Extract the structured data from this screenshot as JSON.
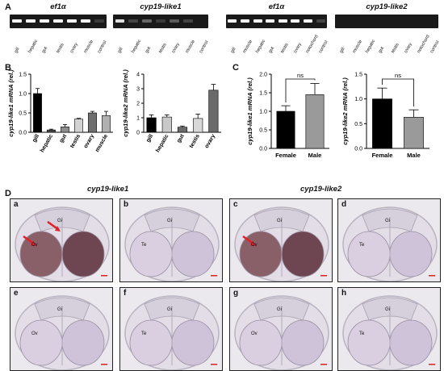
{
  "panels": {
    "A": "A",
    "B": "B",
    "C": "C",
    "D": "D"
  },
  "gels": [
    {
      "title": "ef1α",
      "lanes": [
        "gill",
        "hepatic",
        "gut",
        "testis",
        "ovary",
        "muscle",
        "control"
      ],
      "bands": [
        1,
        1,
        1,
        1,
        1,
        1,
        0.15
      ]
    },
    {
      "title": "cyp19-like1",
      "lanes": [
        "gill",
        "hepatic",
        "gut",
        "testis",
        "ovary",
        "muscle",
        "control"
      ],
      "bands": [
        0.9,
        0.2,
        0.35,
        0.15,
        0.3,
        0.2,
        0
      ]
    },
    {
      "title": "ef1α",
      "lanes": [
        "gill",
        "muscle",
        "hepatic",
        "gut",
        "testis",
        "ovary",
        "notochord",
        "control"
      ],
      "bands": [
        1,
        1,
        1,
        1,
        1,
        1,
        1,
        0.2
      ]
    },
    {
      "title": "cyp19-like2",
      "lanes": [
        "gill",
        "muscle",
        "hepatic",
        "gut",
        "testis",
        "ovary",
        "notochord",
        "control"
      ],
      "bands": [
        0,
        0,
        0,
        0,
        0,
        0,
        0,
        0
      ]
    }
  ],
  "chart_data": [
    {
      "type": "bar",
      "ylabel": "cyp19-like1 mRNA (rel.)",
      "ylim": [
        0,
        1.5
      ],
      "yticks": [
        "0.0",
        "0.5",
        "1.0",
        "1.5"
      ],
      "categories": [
        "gill",
        "hepatic",
        "gut",
        "testis",
        "ovary",
        "muscle"
      ],
      "values": [
        1.0,
        0.06,
        0.14,
        0.34,
        0.5,
        0.43
      ],
      "errors": [
        0.13,
        0.02,
        0.06,
        0.02,
        0.04,
        0.11
      ],
      "colors": [
        "#000000",
        "#4a4a4a",
        "#8e8e8e",
        "#d2d2d2",
        "#6f6f6f",
        "#b0b0b0"
      ]
    },
    {
      "type": "bar",
      "ylabel": "cyp19-like2 mRNA (rel.)",
      "ylim": [
        0,
        4
      ],
      "yticks": [
        "0",
        "1",
        "2",
        "3",
        "4"
      ],
      "categories": [
        "gill",
        "hepatic",
        "gut",
        "testis",
        "ovary"
      ],
      "values": [
        1.0,
        1.05,
        0.35,
        0.95,
        2.9
      ],
      "errors": [
        0.2,
        0.15,
        0.08,
        0.3,
        0.4
      ],
      "colors": [
        "#000000",
        "#c8c8c8",
        "#6a6a6a",
        "#d8d8d8",
        "#6a6a6a"
      ]
    },
    {
      "type": "bar",
      "ylabel": "cyp19-like1 mRNA (rel.)",
      "ylim": [
        0,
        2.0
      ],
      "yticks": [
        "0.0",
        "0.5",
        "1.0",
        "1.5",
        "2.0"
      ],
      "categories": [
        "Female",
        "Male"
      ],
      "values": [
        1.0,
        1.45
      ],
      "errors": [
        0.15,
        0.3
      ],
      "colors": [
        "#000000",
        "#9a9a9a"
      ],
      "annotation": "ns"
    },
    {
      "type": "bar",
      "ylabel": "cyp19-like2 mRNA (rel.)",
      "ylim": [
        0,
        1.5
      ],
      "yticks": [
        "0.0",
        "0.5",
        "1.0",
        "1.5"
      ],
      "categories": [
        "Female",
        "Male"
      ],
      "values": [
        1.0,
        0.63
      ],
      "errors": [
        0.22,
        0.15
      ],
      "colors": [
        "#000000",
        "#9a9a9a"
      ],
      "annotation": "ns"
    }
  ],
  "micrographs": {
    "group_titles": [
      "cyp19-like1",
      "cyp19-like2"
    ],
    "cells": [
      {
        "letter": "a",
        "labels": [
          "Gi",
          "Ov"
        ],
        "stained": true,
        "arrows": 2
      },
      {
        "letter": "b",
        "labels": [
          "Gi",
          "Te"
        ],
        "stained": false,
        "arrows": 0
      },
      {
        "letter": "c",
        "labels": [
          "Gi",
          "Ov"
        ],
        "stained": true,
        "arrows": 1
      },
      {
        "letter": "d",
        "labels": [
          "Gi",
          "Te"
        ],
        "stained": false,
        "arrows": 0
      },
      {
        "letter": "e",
        "labels": [
          "Gi",
          "Ov"
        ],
        "stained": false,
        "arrows": 0
      },
      {
        "letter": "f",
        "labels": [
          "Gi",
          "Te"
        ],
        "stained": false,
        "arrows": 0
      },
      {
        "letter": "g",
        "labels": [
          "Gi",
          "Ov"
        ],
        "stained": false,
        "arrows": 0
      },
      {
        "letter": "h",
        "labels": [
          "Gi",
          "Te"
        ],
        "stained": false,
        "arrows": 0
      }
    ]
  }
}
